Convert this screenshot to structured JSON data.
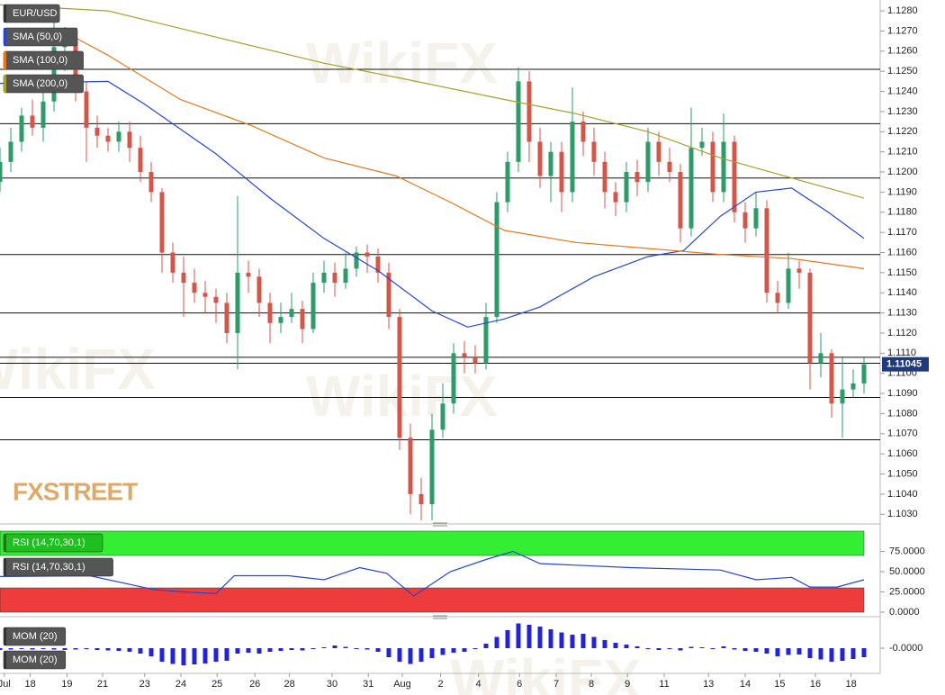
{
  "chart_data": [
    {
      "type": "candlestick",
      "title": "EUR/USD",
      "up_color": "#2f9a6a",
      "down_color": "#d2564a",
      "open": [
        1.1195,
        1.1205,
        1.1215,
        1.1228,
        1.1222,
        1.1235,
        1.1262,
        1.1265,
        1.124,
        1.1222,
        1.1218,
        1.1215,
        1.122,
        1.1212,
        1.12,
        1.119,
        1.116,
        1.115,
        1.1145,
        1.114,
        1.1138,
        1.1135,
        1.112,
        1.115,
        1.1148,
        1.1135,
        1.1125,
        1.1128,
        1.1132,
        1.1122,
        1.1145,
        1.115,
        1.1145,
        1.1152,
        1.116,
        1.1158,
        1.115,
        1.1128,
        1.1068,
        1.104,
        1.1035,
        1.1072,
        1.1085,
        1.111,
        1.1108,
        1.1105,
        1.1128,
        1.1185,
        1.1205,
        1.1245,
        1.1215,
        1.1198,
        1.121,
        1.119,
        1.1225,
        1.1215,
        1.1205,
        1.119,
        1.1185,
        1.12,
        1.1195,
        1.1215,
        1.1205,
        1.12,
        1.1172,
        1.1212,
        1.1215,
        1.119,
        1.1215,
        1.118,
        1.1172,
        1.1182,
        1.114,
        1.1135,
        1.1152,
        1.115,
        1.1105,
        1.111,
        1.1085,
        1.1092,
        1.1095
      ],
      "high": [
        1.1212,
        1.1222,
        1.1232,
        1.1236,
        1.124,
        1.1282,
        1.1272,
        1.127,
        1.1245,
        1.1228,
        1.1222,
        1.1225,
        1.1225,
        1.1218,
        1.1205,
        1.1192,
        1.1165,
        1.1158,
        1.1152,
        1.1146,
        1.1142,
        1.114,
        1.1188,
        1.1156,
        1.1152,
        1.114,
        1.1135,
        1.114,
        1.1136,
        1.115,
        1.1156,
        1.1155,
        1.116,
        1.1163,
        1.1164,
        1.1162,
        1.1155,
        1.1132,
        1.1075,
        1.1048,
        1.108,
        1.1095,
        1.1115,
        1.1116,
        1.1114,
        1.1135,
        1.119,
        1.121,
        1.1252,
        1.125,
        1.1222,
        1.1215,
        1.1215,
        1.1242,
        1.123,
        1.1222,
        1.121,
        1.1195,
        1.1205,
        1.1206,
        1.1222,
        1.122,
        1.1212,
        1.1204,
        1.1232,
        1.1222,
        1.122,
        1.1229,
        1.1218,
        1.1185,
        1.119,
        1.1186,
        1.1146,
        1.116,
        1.1156,
        1.1152,
        1.112,
        1.1112,
        1.1108,
        1.1102,
        1.1108
      ],
      "low": [
        1.119,
        1.12,
        1.121,
        1.1218,
        1.1215,
        1.123,
        1.125,
        1.1235,
        1.1205,
        1.1212,
        1.121,
        1.121,
        1.1205,
        1.1195,
        1.1185,
        1.115,
        1.1145,
        1.1128,
        1.1135,
        1.113,
        1.1125,
        1.1115,
        1.1102,
        1.114,
        1.1128,
        1.1115,
        1.112,
        1.1125,
        1.1115,
        1.112,
        1.114,
        1.1138,
        1.1142,
        1.1148,
        1.115,
        1.1145,
        1.1122,
        1.1062,
        1.103,
        1.1026,
        1.1026,
        1.1068,
        1.108,
        1.11,
        1.11,
        1.1102,
        1.1125,
        1.118,
        1.12,
        1.1205,
        1.1192,
        1.1185,
        1.118,
        1.1185,
        1.1208,
        1.1198,
        1.1182,
        1.1178,
        1.118,
        1.1188,
        1.119,
        1.1198,
        1.1195,
        1.1165,
        1.1168,
        1.1208,
        1.1185,
        1.1185,
        1.1175,
        1.1165,
        1.1168,
        1.1135,
        1.113,
        1.1132,
        1.1142,
        1.1092,
        1.1098,
        1.1078,
        1.1068,
        1.1088,
        1.109
      ],
      "close": [
        1.1205,
        1.1215,
        1.1228,
        1.1222,
        1.1235,
        1.1262,
        1.1265,
        1.124,
        1.1222,
        1.1218,
        1.1215,
        1.122,
        1.1212,
        1.12,
        1.119,
        1.116,
        1.115,
        1.1145,
        1.114,
        1.1138,
        1.1135,
        1.112,
        1.115,
        1.1148,
        1.1135,
        1.1125,
        1.1128,
        1.1132,
        1.1122,
        1.1145,
        1.115,
        1.1145,
        1.1152,
        1.116,
        1.1158,
        1.115,
        1.1128,
        1.1068,
        1.104,
        1.1035,
        1.1072,
        1.1085,
        1.111,
        1.1108,
        1.1105,
        1.1128,
        1.1185,
        1.1205,
        1.1245,
        1.1215,
        1.1198,
        1.121,
        1.119,
        1.1225,
        1.1215,
        1.1205,
        1.119,
        1.1185,
        1.12,
        1.1195,
        1.1215,
        1.1205,
        1.12,
        1.1172,
        1.1212,
        1.1215,
        1.119,
        1.1215,
        1.118,
        1.1172,
        1.1182,
        1.114,
        1.1135,
        1.1152,
        1.115,
        1.1105,
        1.111,
        1.1085,
        1.1092,
        1.1095,
        1.11045
      ],
      "last_price": 1.11045,
      "last_color": "#1f3a7a",
      "series": [
        {
          "name": "SMA (50,0)",
          "color": "#2946c8",
          "x": [
            0,
            10,
            13.3,
            20,
            25,
            30,
            35,
            40,
            43.3,
            46.7,
            50,
            55,
            60,
            63.3,
            66.7,
            70,
            73.3,
            76.7,
            80
          ],
          "values": [
            1.1244,
            1.1245,
            1.1234,
            1.1209,
            1.1187,
            1.1167,
            1.1151,
            1.1131,
            1.1123,
            1.1127,
            1.1133,
            1.1148,
            1.1158,
            1.1161,
            1.1178,
            1.119,
            1.1192,
            1.118,
            1.1167
          ]
        },
        {
          "name": "SMA (100,0)",
          "color": "#e07a20",
          "x": [
            5.8,
            10,
            16.7,
            23.3,
            30,
            36.7,
            41.7,
            46.7,
            53.3,
            60,
            66.7,
            73.3,
            80
          ],
          "values": [
            1.127,
            1.1258,
            1.1236,
            1.1223,
            1.1207,
            1.1198,
            1.1185,
            1.1171,
            1.1165,
            1.1162,
            1.1159,
            1.1157,
            1.1152
          ]
        },
        {
          "name": "SMA (200,0)",
          "color": "#a8a030",
          "x": [
            0,
            10,
            20,
            30,
            36.7,
            46.7,
            53.3,
            60,
            66.7,
            73.3,
            80
          ],
          "values": [
            1.1283,
            1.128,
            1.1267,
            1.1254,
            1.1247,
            1.1236,
            1.1229,
            1.122,
            1.1207,
            1.1197,
            1.1187
          ]
        }
      ],
      "levels": [
        1.1251,
        1.1224,
        1.1197,
        1.1159,
        1.113,
        1.1108,
        1.1105,
        1.1088,
        1.1067
      ],
      "xlim": [
        0,
        81.5
      ],
      "ylim": [
        1.1027,
        1.12854
      ],
      "yticks": [
        {
          "value": 1.128,
          "label": "1.1280"
        },
        {
          "value": 1.127,
          "label": "1.1270"
        },
        {
          "value": 1.126,
          "label": "1.1260"
        },
        {
          "value": 1.125,
          "label": "1.1250"
        },
        {
          "value": 1.124,
          "label": "1.1240"
        },
        {
          "value": 1.123,
          "label": "1.1230"
        },
        {
          "value": 1.122,
          "label": "1.1220"
        },
        {
          "value": 1.121,
          "label": "1.1210"
        },
        {
          "value": 1.12,
          "label": "1.1200"
        },
        {
          "value": 1.119,
          "label": "1.1190"
        },
        {
          "value": 1.118,
          "label": "1.1180"
        },
        {
          "value": 1.117,
          "label": "1.1170"
        },
        {
          "value": 1.116,
          "label": "1.1160"
        },
        {
          "value": 1.115,
          "label": "1.1150"
        },
        {
          "value": 1.114,
          "label": "1.1140"
        },
        {
          "value": 1.113,
          "label": "1.1130"
        },
        {
          "value": 1.112,
          "label": "1.1120"
        },
        {
          "value": 1.111,
          "label": "1.1110"
        },
        {
          "value": 1.11,
          "label": "1.1100"
        },
        {
          "value": 1.109,
          "label": "1.1090"
        },
        {
          "value": 1.108,
          "label": "1.1080"
        },
        {
          "value": 1.107,
          "label": "1.1070"
        },
        {
          "value": 1.106,
          "label": "1.1060"
        },
        {
          "value": 1.105,
          "label": "1.1050"
        },
        {
          "value": 1.104,
          "label": "1.1040"
        },
        {
          "value": 1.103,
          "label": "1.1030"
        }
      ],
      "xticks": [
        {
          "value": 0.4,
          "label": "Jul"
        },
        {
          "value": 2.8,
          "label": "18"
        },
        {
          "value": 6.2,
          "label": "19"
        },
        {
          "value": 9.5,
          "label": "21"
        },
        {
          "value": 13.4,
          "label": "23"
        },
        {
          "value": 16.75,
          "label": "24"
        },
        {
          "value": 20.1,
          "label": "25"
        },
        {
          "value": 23.6,
          "label": "26"
        },
        {
          "value": 26.8,
          "label": "28"
        },
        {
          "value": 30.75,
          "label": "30"
        },
        {
          "value": 34.1,
          "label": "31"
        },
        {
          "value": 37.25,
          "label": "Aug"
        },
        {
          "value": 40.8,
          "label": "2"
        },
        {
          "value": 44.3,
          "label": "4"
        },
        {
          "value": 48.1,
          "label": "6"
        },
        {
          "value": 51.5,
          "label": "7"
        },
        {
          "value": 54.75,
          "label": "8"
        },
        {
          "value": 58.1,
          "label": "9"
        },
        {
          "value": 61.5,
          "label": "11"
        },
        {
          "value": 65.6,
          "label": "13"
        },
        {
          "value": 69,
          "label": "14"
        },
        {
          "value": 72.2,
          "label": "15"
        },
        {
          "value": 75.5,
          "label": "16"
        },
        {
          "value": 78.8,
          "label": "18"
        }
      ]
    },
    {
      "type": "line",
      "title": "RSI (14,70,30,1)",
      "color": "#2946c8",
      "x": [
        0,
        8.3,
        14.2,
        17,
        20,
        21.7,
        26.7,
        30,
        33.3,
        35.8,
        38.3,
        41.7,
        45,
        47.5,
        50,
        58.3,
        66.7,
        70,
        73.3,
        75,
        77.5,
        80
      ],
      "values": [
        44,
        45,
        28,
        25,
        23,
        45,
        45,
        40,
        55,
        48,
        20,
        50,
        65,
        75,
        60,
        55,
        52,
        40,
        43,
        31,
        31,
        40
      ],
      "bands": [
        {
          "from": 70,
          "to": 100,
          "color": "#33ee33"
        },
        {
          "from": 0,
          "to": 30,
          "color": "#ee3b3b"
        }
      ],
      "ylim": [
        0,
        100
      ],
      "yticks": [
        {
          "value": 75,
          "label": "75.0000"
        },
        {
          "value": 50,
          "label": "50.0000"
        },
        {
          "value": 25,
          "label": "25.0000"
        },
        {
          "value": 0,
          "label": "0.0000"
        }
      ]
    },
    {
      "type": "bar",
      "title": "MOM (20)",
      "color": "#2323d6",
      "values": [
        -0.0004,
        -0.0003,
        -0.0002,
        -0.0003,
        -0.0002,
        -0.0003,
        -0.0004,
        -0.0003,
        -0.0002,
        -0.0004,
        -0.0005,
        -0.0006,
        -0.0008,
        -0.0012,
        -0.0018,
        -0.003,
        -0.0035,
        -0.0038,
        -0.0036,
        -0.0034,
        -0.003,
        -0.0028,
        -0.0012,
        -0.001,
        -0.0012,
        -0.0008,
        -0.0006,
        -0.0004,
        -0.0005,
        -0.0002,
        0.0002,
        0.0006,
        0.0003,
        -0.0002,
        -0.0003,
        -0.0008,
        -0.002,
        -0.003,
        -0.0035,
        -0.003,
        -0.0022,
        -0.0015,
        -0.001,
        -0.0008,
        -0.0002,
        0.001,
        0.0025,
        0.004,
        0.0055,
        0.0052,
        0.0048,
        0.0042,
        0.0035,
        0.003,
        0.0032,
        0.0025,
        0.0018,
        0.0012,
        0.0008,
        0.0004,
        -0.0002,
        -0.0004,
        -0.0002,
        -0.0005,
        0.0003,
        0.0002,
        -0.0002,
        0.0004,
        -0.0003,
        -0.0006,
        -0.0008,
        -0.0012,
        -0.0018,
        -0.0015,
        -0.0014,
        -0.0022,
        -0.0025,
        -0.003,
        -0.0028,
        -0.0024,
        -0.002
      ],
      "ylim": [
        -0.0056,
        0.0064
      ],
      "yticks": [
        {
          "value": 0,
          "label": "-0.0000"
        }
      ]
    }
  ],
  "watermark": "WikiFX",
  "logo": "FXSTREET"
}
